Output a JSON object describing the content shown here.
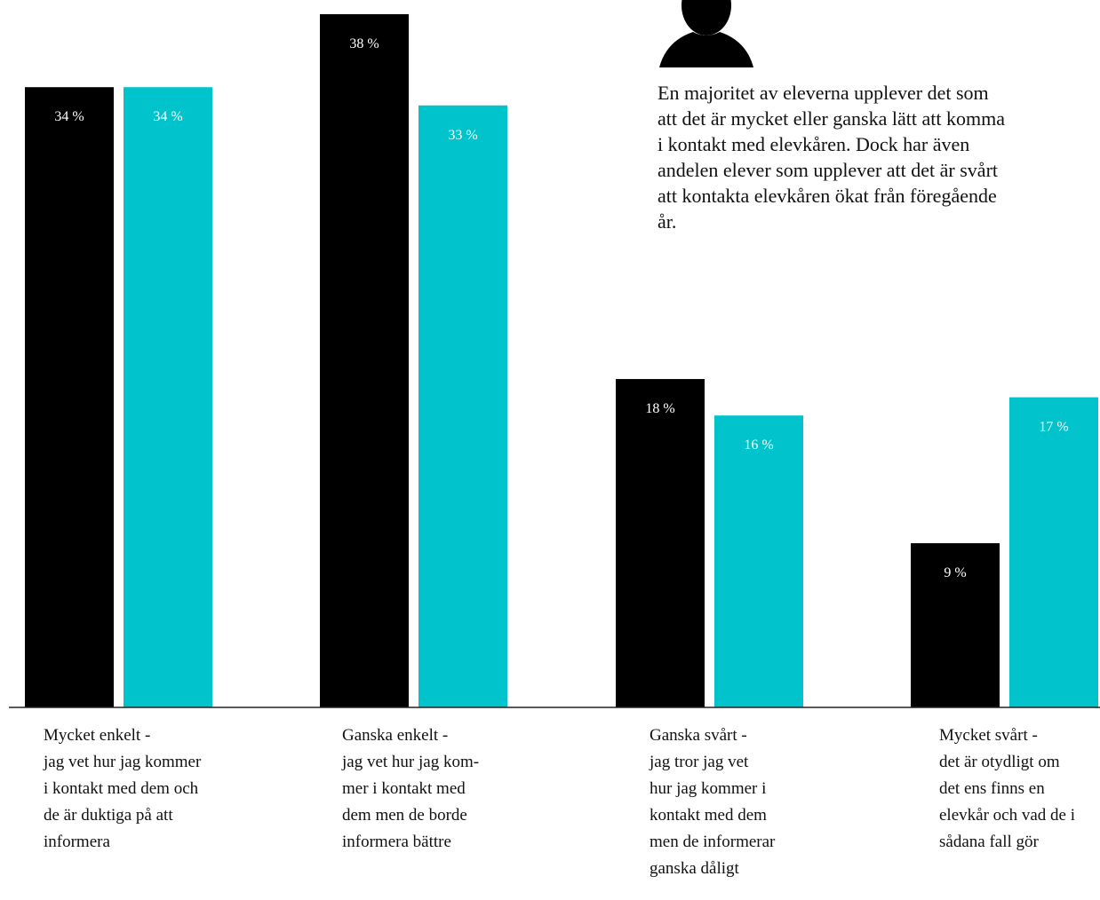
{
  "chart_data": {
    "type": "bar",
    "categories": [
      "Mycket enkelt -\njag vet hur jag kommer\ni kontakt med dem och\nde är duktiga på att\ninformera",
      "Ganska enkelt -\njag vet hur jag kom-\nmer i kontakt med\ndem men de borde\ninformera bättre",
      "Ganska svårt -\njag tror jag vet\nhur jag kommer i\nkontakt med dem\nmen de informerar\nganska dåligt",
      "Mycket svårt -\ndet är otydligt om\ndet ens finns en\nelevkår och vad de i\nsådana fall gör"
    ],
    "series": [
      {
        "color": "#000000",
        "values": [
          34,
          38,
          18,
          9
        ],
        "labels": [
          "34 %",
          "38 %",
          "18 %",
          "9 %"
        ]
      },
      {
        "color": "#00c3cc",
        "values": [
          34,
          33,
          16,
          17
        ],
        "labels": [
          "34 %",
          "33 %",
          "16 %",
          "17 %"
        ]
      }
    ],
    "ylim": [
      0,
      40
    ],
    "grid": false,
    "legend": "none",
    "annotation": "En majoritet av eleverna upplever det som att det är mycket eller ganska lätt att komma i kontakt med elevkåren. Dock har även andelen elever som upplever att det är svårt att kontakta elevkåren ökat från föregående år."
  },
  "icons": {
    "annotation_icon": "person-silhouette-icon"
  }
}
